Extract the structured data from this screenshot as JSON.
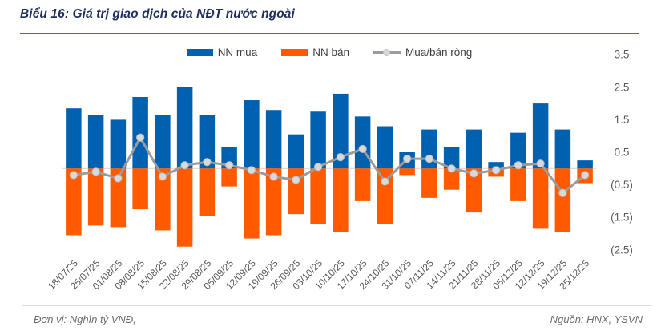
{
  "header": {
    "title": "Biểu 16: Giá trị giao dịch của NĐT nước ngoài"
  },
  "legend": [
    {
      "label": "NN mua",
      "color": "#0061b0",
      "type": "bar"
    },
    {
      "label": "NN bán",
      "color": "#ff5a00",
      "type": "bar"
    },
    {
      "label": "Mua/bán ròng",
      "color": "#9b9b9b",
      "marker_color": "#d9d9d9",
      "type": "line"
    }
  ],
  "footer": {
    "unit_note": "Đơn vị: Nghìn tỷ VNĐ,",
    "source": "Nguồn: HNX, YSVN"
  },
  "colors": {
    "buy_bar": "#0061b0",
    "sell_bar": "#ff5a00",
    "net_line": "#9b9b9b",
    "net_marker_fill": "#d9d9d9",
    "net_marker_stroke": "#bdbdbd",
    "zero_line": "#dadada",
    "axis_text": "#595959",
    "title_text": "#1e2f5c",
    "title_rule": "#2e74b5"
  },
  "chart_data": {
    "type": "bar",
    "subtype": "grouped-overlap bar with line overlay (combo)",
    "title": "Biểu 16: Giá trị giao dịch của NĐT nước ngoài",
    "xlabel": "",
    "ylabel": "Nghìn tỷ VNĐ",
    "ylim": [
      -2.9,
      3.9
    ],
    "grid": "zero-line-only",
    "legend_position": "top-center",
    "y_axis_side": "right",
    "y_ticks": [
      3.5,
      2.5,
      1.5,
      0.5,
      -0.5,
      -1.5,
      -2.5
    ],
    "y_tick_labels": [
      "3.5",
      "2.5",
      "1.5",
      "0.5",
      "(0.5)",
      "(1.5)",
      "(2.5)"
    ],
    "categories": [
      "18/07/25",
      "25/07/25",
      "01/08/25",
      "08/08/25",
      "15/08/25",
      "22/08/25",
      "29/08/25",
      "05/09/25",
      "12/09/25",
      "19/09/25",
      "26/09/25",
      "03/10/25",
      "10/10/25",
      "17/10/25",
      "24/10/25",
      "31/10/25",
      "07/11/25",
      "14/11/25",
      "21/11/25",
      "28/11/25",
      "05/12/25",
      "12/12/25",
      "19/12/25",
      "25/12/25"
    ],
    "series": [
      {
        "name": "NN mua",
        "type": "bar",
        "color": "#0061b0",
        "values": [
          1.85,
          1.65,
          1.5,
          2.2,
          1.65,
          2.5,
          1.65,
          0.65,
          2.1,
          1.8,
          1.05,
          1.75,
          2.3,
          1.6,
          1.3,
          0.5,
          1.2,
          0.65,
          1.2,
          0.2,
          1.1,
          2.0,
          1.2,
          0.25
        ]
      },
      {
        "name": "NN bán",
        "type": "bar",
        "color": "#ff5a00",
        "values": [
          -2.05,
          -1.75,
          -1.8,
          -1.25,
          -1.9,
          -2.4,
          -1.45,
          -0.55,
          -2.15,
          -2.05,
          -1.4,
          -1.7,
          -1.95,
          -1.0,
          -1.7,
          -0.2,
          -0.9,
          -0.65,
          -1.35,
          -0.25,
          -1.0,
          -1.85,
          -1.95,
          -0.45
        ]
      },
      {
        "name": "Mua/bán ròng",
        "type": "line",
        "color": "#9b9b9b",
        "marker_color": "#d9d9d9",
        "values": [
          -0.2,
          -0.1,
          -0.3,
          0.95,
          -0.25,
          0.1,
          0.2,
          0.1,
          -0.05,
          -0.25,
          -0.35,
          0.05,
          0.35,
          0.6,
          -0.4,
          0.3,
          0.3,
          0.0,
          -0.15,
          -0.05,
          0.1,
          0.15,
          -0.75,
          -0.2
        ]
      }
    ]
  }
}
